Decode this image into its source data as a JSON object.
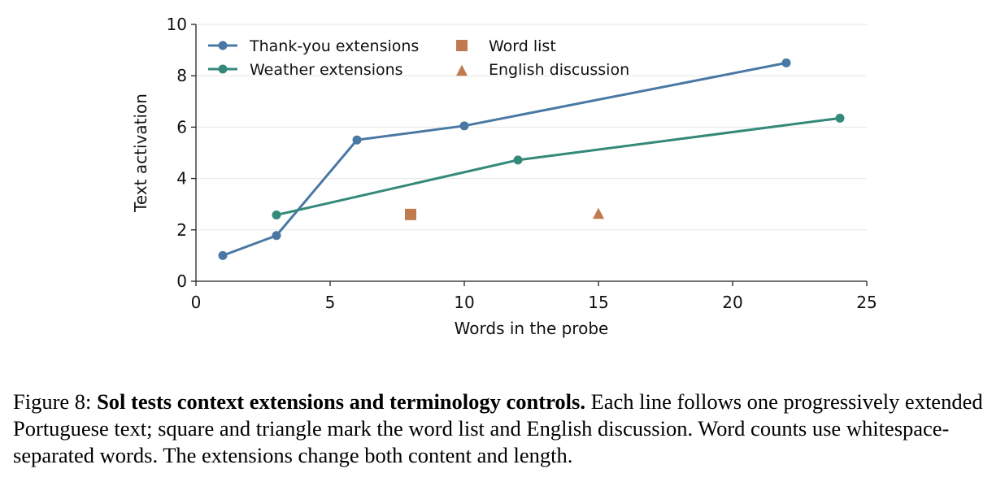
{
  "chart_data": {
    "type": "line",
    "xlabel": "Words in the probe",
    "ylabel": "Text activation",
    "xlim": [
      0,
      25
    ],
    "ylim": [
      0,
      10
    ],
    "x_ticks": [
      0,
      5,
      10,
      15,
      20,
      25
    ],
    "y_ticks": [
      0,
      2,
      4,
      6,
      8,
      10
    ],
    "grid": "horizontal",
    "legend_position": "top-left",
    "series": [
      {
        "name": "Thank-you extensions",
        "kind": "line",
        "marker": "circle",
        "color": "#4a78a4",
        "x": [
          1,
          3,
          6,
          10,
          22
        ],
        "y": [
          1.0,
          1.78,
          5.5,
          6.05,
          8.5
        ]
      },
      {
        "name": "Weather extensions",
        "kind": "line",
        "marker": "circle",
        "color": "#34897a",
        "x": [
          3,
          12,
          24
        ],
        "y": [
          2.58,
          4.72,
          6.35
        ]
      },
      {
        "name": "Word list",
        "kind": "point",
        "marker": "square",
        "color": "#c07a4f",
        "x": [
          8
        ],
        "y": [
          2.6
        ]
      },
      {
        "name": "English discussion",
        "kind": "point",
        "marker": "triangle",
        "color": "#c07a4f",
        "x": [
          15
        ],
        "y": [
          2.63
        ]
      }
    ]
  },
  "caption": {
    "prefix": "Figure 8: ",
    "bold": "Sol tests context extensions and terminology controls.",
    "text": " Each line follows one progressively extended Portuguese text; square and triangle mark the word list and English discussion. Word counts use whitespace-separated words. The extensions change both content and length."
  }
}
